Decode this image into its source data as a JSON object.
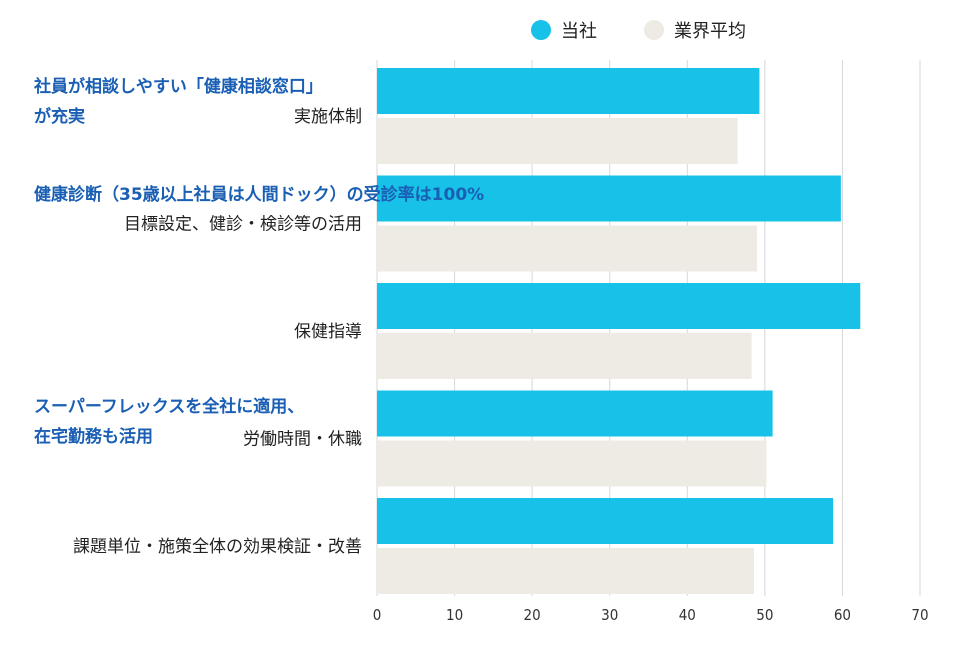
{
  "chart_data": {
    "type": "bar",
    "orientation": "horizontal",
    "categories": [
      "実施体制",
      "目標設定、健診・検診等の活用",
      "保健指導",
      "労働時間・休職",
      "課題単位・施策全体の効果検証・改善"
    ],
    "series": [
      {
        "name": "当社",
        "color": "#18c1e8",
        "values": [
          49.3,
          59.8,
          62.3,
          51,
          58.8
        ]
      },
      {
        "name": "業界平均",
        "color": "#eeebe5",
        "values": [
          46.5,
          49,
          48.3,
          50.2,
          48.6
        ]
      }
    ],
    "xlim": [
      0,
      70
    ],
    "xticks": [
      0,
      10,
      20,
      30,
      40,
      50,
      60,
      70
    ],
    "grid": true,
    "legend_position": "top-right",
    "annotations": [
      {
        "lines": [
          "社員が相談しやすい「健康相談窓口」",
          "が充実"
        ],
        "category_index": 0
      },
      {
        "lines": [
          "健康診断（35歳以上社員は人間ドック）の受診率は100%"
        ],
        "category_index": 1
      },
      {
        "lines": [
          "スーパーフレックスを全社に適用、",
          "在宅勤務も活用"
        ],
        "category_index": 3
      }
    ]
  }
}
